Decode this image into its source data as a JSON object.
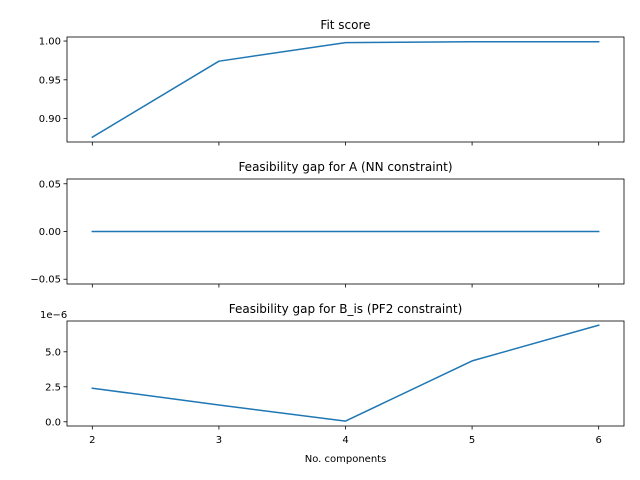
{
  "colors": {
    "series": "#1f77b4"
  },
  "chart_data": [
    {
      "type": "line",
      "title": "Fit score",
      "x": [
        2,
        3,
        4,
        5,
        6
      ],
      "series": [
        {
          "values": [
            0.876,
            0.974,
            0.998,
            0.999,
            0.999
          ]
        }
      ],
      "xlim": [
        1.8,
        6.2
      ],
      "ylim": [
        0.8698,
        1.0052
      ],
      "yticks": [
        0.9,
        0.95,
        1.0
      ],
      "ytick_labels": [
        "0.90",
        "0.95",
        "1.00"
      ],
      "xticks": [
        2,
        3,
        4,
        5,
        6
      ],
      "xtick_labels": [],
      "xlabel": "",
      "ylabel": "",
      "y_offset_label": "",
      "grid": false
    },
    {
      "type": "line",
      "title": "Feasibility gap for A  (NN constraint)",
      "x": [
        2,
        3,
        4,
        5,
        6
      ],
      "series": [
        {
          "values": [
            0,
            0,
            0,
            0,
            0
          ]
        }
      ],
      "xlim": [
        1.8,
        6.2
      ],
      "ylim": [
        -0.055,
        0.055
      ],
      "yticks": [
        -0.05,
        0.0,
        0.05
      ],
      "ytick_labels": [
        "−0.05",
        "0.00",
        "0.05"
      ],
      "xticks": [
        2,
        3,
        4,
        5,
        6
      ],
      "xtick_labels": [],
      "xlabel": "",
      "ylabel": "",
      "y_offset_label": "",
      "grid": false
    },
    {
      "type": "line",
      "title": "Feasibility gap for B_is (PF2 constraint)",
      "x": [
        2,
        3,
        4,
        5,
        6
      ],
      "series": [
        {
          "values": [
            2.4e-06,
            1.2e-06,
            5e-08,
            4.35e-06,
            6.9e-06
          ]
        }
      ],
      "xlim": [
        1.8,
        6.2
      ],
      "ylim": [
        -3e-07,
        7.2e-06
      ],
      "yticks": [
        0,
        2.5e-06,
        5e-06
      ],
      "ytick_labels": [
        "0.0",
        "2.5",
        "5.0"
      ],
      "xticks": [
        2,
        3,
        4,
        5,
        6
      ],
      "xtick_labels": [
        "2",
        "3",
        "4",
        "5",
        "6"
      ],
      "xlabel": "No. components",
      "ylabel": "",
      "y_offset_label": "1e−6",
      "grid": false
    }
  ]
}
